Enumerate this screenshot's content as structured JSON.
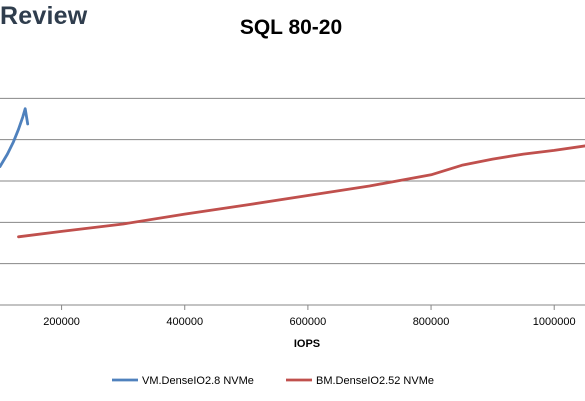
{
  "brand": {
    "text": "Review"
  },
  "chart_data": {
    "type": "line",
    "title": "SQL 80-20",
    "xlabel": "IOPS",
    "ylabel": "",
    "xlim": [
      100000,
      1050000
    ],
    "ylim": [
      0,
      6
    ],
    "x_ticks": [
      200000,
      400000,
      600000,
      800000,
      1000000
    ],
    "grid": true,
    "legend": "bottom",
    "series": [
      {
        "name": "VM.DenseIO2.8 NVMe",
        "color": "#4f81bd",
        "x": [
          100000,
          112000,
          122000,
          130000,
          137000,
          141000,
          145000
        ],
        "y": [
          3.35,
          3.65,
          3.95,
          4.25,
          4.55,
          4.75,
          4.38
        ]
      },
      {
        "name": "BM.DenseIO2.52 NVMe",
        "color": "#c0504d",
        "x": [
          130000,
          200000,
          300000,
          400000,
          500000,
          600000,
          700000,
          800000,
          850000,
          900000,
          950000,
          1000000,
          1050000
        ],
        "y": [
          1.65,
          1.78,
          1.96,
          2.2,
          2.42,
          2.65,
          2.88,
          3.15,
          3.38,
          3.53,
          3.65,
          3.74,
          3.85
        ]
      }
    ]
  }
}
